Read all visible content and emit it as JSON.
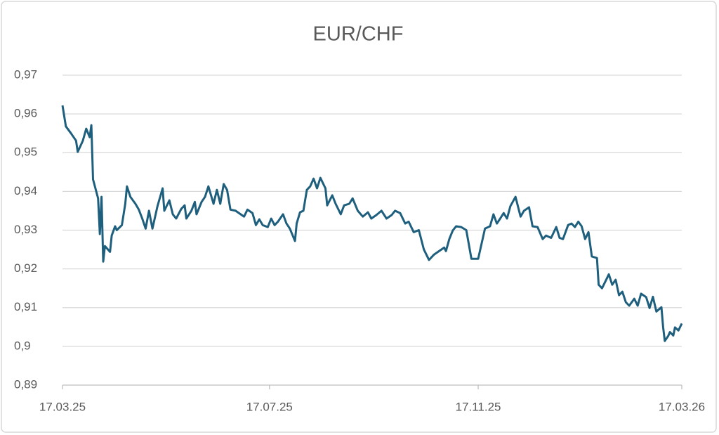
{
  "chart_data": {
    "type": "line",
    "title": "EUR/CHF",
    "x": [
      "17.03.25",
      "19.03.25",
      "22.03.25",
      "25.03.25",
      "26.03.25",
      "29.03.25",
      "31.03.25",
      "02.04.25",
      "03.04.25",
      "04.04.25",
      "07.04.25",
      "08.04.25",
      "09.04.25",
      "10.04.25",
      "11.04.25",
      "14.04.25",
      "15.04.25",
      "17.04.25",
      "18.04.25",
      "21.04.25",
      "23.04.25",
      "24.04.25",
      "26.04.25",
      "29.04.25",
      "01.05.25",
      "03.05.25",
      "05.05.25",
      "07.05.25",
      "09.05.25",
      "12.05.25",
      "15.05.25",
      "16.05.25",
      "19.05.25",
      "21.05.25",
      "23.05.25",
      "26.05.25",
      "28.05.25",
      "29.05.25",
      "01.06.25",
      "03.06.25",
      "04.06.25",
      "07.06.25",
      "09.06.25",
      "11.06.25",
      "14.06.25",
      "16.06.25",
      "18.06.25",
      "20.06.25",
      "22.06.25",
      "24.06.25",
      "27.06.25",
      "30.06.25",
      "02.07.25",
      "04.07.25",
      "07.07.25",
      "09.07.25",
      "11.07.25",
      "13.07.25",
      "16.07.25",
      "18.07.25",
      "20.07.25",
      "22.07.25",
      "25.07.25",
      "27.07.25",
      "29.07.25",
      "01.08.25",
      "02.08.25",
      "04.08.25",
      "06.08.25",
      "08.08.25",
      "10.08.25",
      "12.08.25",
      "14.08.25",
      "16.08.25",
      "19.08.25",
      "20.08.25",
      "23.08.25",
      "25.08.25",
      "28.08.25",
      "30.08.25",
      "02.09.25",
      "04.09.25",
      "07.09.25",
      "10.09.25",
      "13.09.25",
      "15.09.25",
      "18.09.25",
      "21.09.25",
      "24.09.25",
      "27.09.25",
      "29.09.25",
      "02.10.25",
      "05.10.25",
      "07.10.25",
      "10.10.25",
      "13.10.25",
      "16.10.25",
      "19.10.25",
      "22.10.25",
      "25.10.25",
      "28.10.25",
      "29.10.25",
      "31.10.25",
      "02.11.25",
      "04.11.25",
      "07.11.25",
      "10.11.25",
      "13.11.25",
      "17.11.25",
      "21.11.25",
      "24.11.25",
      "26.11.25",
      "28.11.25",
      "30.11.25",
      "02.12.25",
      "04.12.25",
      "06.12.25",
      "09.12.25",
      "12.12.25",
      "14.12.25",
      "17.12.25",
      "19.12.25",
      "22.12.25",
      "25.12.25",
      "27.12.25",
      "30.12.25",
      "02.01.26",
      "04.01.26",
      "06.01.26",
      "09.01.26",
      "11.01.26",
      "13.01.26",
      "15.01.26",
      "17.01.26",
      "19.01.26",
      "21.01.26",
      "23.01.26",
      "26.01.26",
      "27.01.26",
      "29.01.26",
      "01.02.26",
      "02.02.26",
      "04.02.26",
      "06.02.26",
      "08.02.26",
      "10.02.26",
      "12.02.26",
      "14.02.26",
      "17.02.26",
      "19.02.26",
      "21.02.26",
      "24.02.26",
      "26.02.26",
      "28.02.26",
      "02.03.26",
      "05.03.26",
      "06.03.26",
      "07.03.26",
      "09.03.26",
      "10.03.26",
      "12.03.26",
      "13.03.26",
      "15.03.26",
      "17.03.26"
    ],
    "series": [
      {
        "name": "EUR/CHF",
        "color": "#1f5f7e",
        "values": [
          0.9622,
          0.9568,
          0.955,
          0.9531,
          0.9502,
          0.9531,
          0.9562,
          0.954,
          0.9571,
          0.9431,
          0.9382,
          0.929,
          0.9386,
          0.9219,
          0.9259,
          0.9244,
          0.9286,
          0.931,
          0.93,
          0.9313,
          0.9368,
          0.9413,
          0.9386,
          0.9368,
          0.9353,
          0.933,
          0.9304,
          0.935,
          0.9304,
          0.9362,
          0.9408,
          0.935,
          0.9377,
          0.9341,
          0.933,
          0.9355,
          0.9364,
          0.933,
          0.935,
          0.9373,
          0.9341,
          0.9373,
          0.9386,
          0.9413,
          0.9368,
          0.9404,
          0.9368,
          0.9419,
          0.9404,
          0.9353,
          0.935,
          0.9341,
          0.9335,
          0.9353,
          0.9344,
          0.9313,
          0.9328,
          0.9313,
          0.9308,
          0.933,
          0.9313,
          0.9322,
          0.9341,
          0.9317,
          0.9304,
          0.9272,
          0.9317,
          0.9346,
          0.935,
          0.9404,
          0.9413,
          0.9433,
          0.9408,
          0.9435,
          0.9408,
          0.9364,
          0.939,
          0.9368,
          0.9341,
          0.9364,
          0.9368,
          0.9382,
          0.935,
          0.9335,
          0.9346,
          0.933,
          0.9339,
          0.935,
          0.933,
          0.9339,
          0.935,
          0.9344,
          0.9317,
          0.9322,
          0.9295,
          0.93,
          0.925,
          0.9223,
          0.9237,
          0.9246,
          0.9255,
          0.9246,
          0.9277,
          0.9299,
          0.931,
          0.9308,
          0.93,
          0.9226,
          0.9226,
          0.9304,
          0.931,
          0.9341,
          0.9317,
          0.933,
          0.9344,
          0.933,
          0.9362,
          0.9386,
          0.9335,
          0.935,
          0.9359,
          0.931,
          0.9308,
          0.9277,
          0.9286,
          0.928,
          0.9308,
          0.928,
          0.9277,
          0.9313,
          0.9317,
          0.9308,
          0.9322,
          0.931,
          0.9277,
          0.9295,
          0.9232,
          0.9228,
          0.9159,
          0.915,
          0.9177,
          0.9186,
          0.9159,
          0.9172,
          0.9132,
          0.9141,
          0.9114,
          0.9105,
          0.9123,
          0.9105,
          0.9136,
          0.9127,
          0.9099,
          0.9128,
          0.909,
          0.9101,
          0.905,
          0.9014,
          0.9027,
          0.9037,
          0.9028,
          0.9049,
          0.9041,
          0.9059
        ]
      }
    ],
    "xlim": [
      "17.03.25",
      "17.03.26"
    ],
    "xticks": [
      "17.03.25",
      "17.07.25",
      "17.11.25",
      "17.03.26"
    ],
    "ylim": [
      0.89,
      0.97
    ],
    "yticks": [
      {
        "value": 0.89,
        "label": "0,89"
      },
      {
        "value": 0.9,
        "label": "0,9"
      },
      {
        "value": 0.91,
        "label": "0,91"
      },
      {
        "value": 0.92,
        "label": "0,92"
      },
      {
        "value": 0.93,
        "label": "0,93"
      },
      {
        "value": 0.94,
        "label": "0,94"
      },
      {
        "value": 0.95,
        "label": "0,95"
      },
      {
        "value": 0.96,
        "label": "0,96"
      },
      {
        "value": 0.97,
        "label": "0,97"
      }
    ],
    "grid": true
  }
}
